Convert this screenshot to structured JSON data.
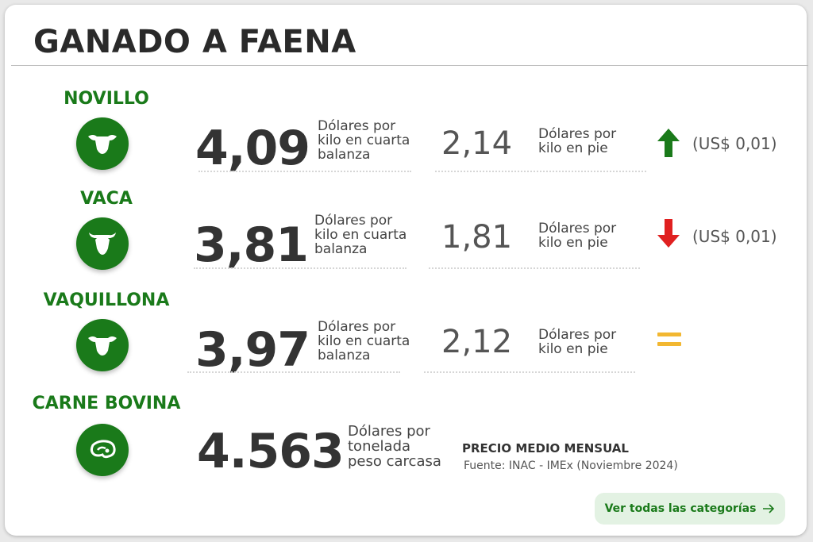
{
  "title": "GANADO A FAENA",
  "rows": [
    {
      "category": "NOVILLO",
      "big_value": "4,09",
      "big_desc": "Dólares por\nkilo en cuarta\nbalanza",
      "mid_value": "2,14",
      "mid_desc": "Dólares por\nkilo en pie",
      "trend": "up",
      "change": "(US$ 0,01)"
    },
    {
      "category": "VACA",
      "big_value": "3,81",
      "big_desc": "Dólares por\nkilo en cuarta\nbalanza",
      "mid_value": "1,81",
      "mid_desc": "Dólares por\nkilo en pie",
      "trend": "down",
      "change": "(US$ 0,01)"
    },
    {
      "category": "VAQUILLONA",
      "big_value": "3,97",
      "big_desc": "Dólares por\nkilo en cuarta\nbalanza",
      "mid_value": "2,12",
      "mid_desc": "Dólares por\nkilo en pie",
      "trend": "equal",
      "change": ""
    },
    {
      "category": "CARNE BOVINA",
      "big_value": "4.563",
      "big_desc": "Dólares por\ntonelada\npeso carcasa"
    }
  ],
  "note": {
    "title": "PRECIO MEDIO MENSUAL",
    "source": "Fuente: INAC - IMEx (Noviembre 2024)"
  },
  "button": {
    "label": "Ver todas las categorías",
    "icon": "arrow-right-icon"
  },
  "colors": {
    "green": "#1a7a1a",
    "up": "#1a7a1a",
    "down": "#e02020",
    "equal": "#f2b731"
  },
  "icons": [
    "cow-head-icon",
    "bull-head-icon",
    "cow-head-icon",
    "meat-cut-icon"
  ]
}
